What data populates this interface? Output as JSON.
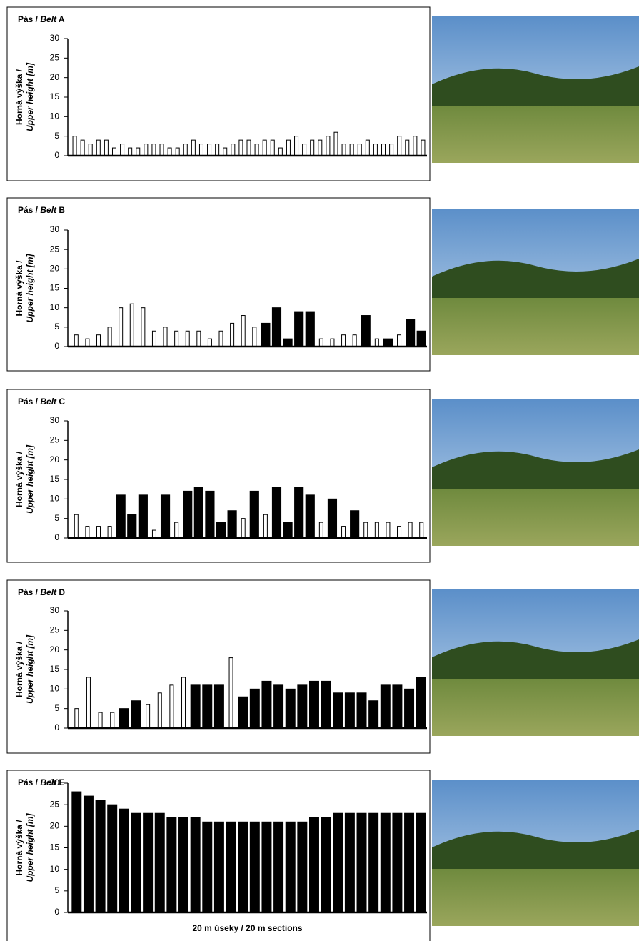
{
  "chart_data": [
    {
      "type": "bar",
      "title_parts": [
        "Pás / ",
        "Belt",
        " A"
      ],
      "ylabel_lines": [
        "Horná výška /",
        "Upper height [m]"
      ],
      "values": [
        5,
        4,
        3,
        4,
        4,
        2,
        3,
        2,
        2,
        3,
        3,
        3,
        2,
        2,
        3,
        4,
        3,
        3,
        3,
        2,
        3,
        4,
        4,
        3,
        4,
        4,
        2,
        4,
        5,
        3,
        4,
        4,
        5,
        6,
        3,
        3,
        3,
        4,
        3,
        3,
        3,
        5,
        4,
        5,
        4
      ],
      "colors": [
        "#ffffff",
        "#ffffff",
        "#ffffff",
        "#ffffff",
        "#ffffff",
        "#ffffff",
        "#ffffff",
        "#ffffff",
        "#ffffff",
        "#ffffff",
        "#ffffff",
        "#ffffff",
        "#ffffff",
        "#ffffff",
        "#ffffff",
        "#ffffff",
        "#ffffff",
        "#ffffff",
        "#ffffff",
        "#ffffff",
        "#ffffff",
        "#ffffff",
        "#ffffff",
        "#ffffff",
        "#ffffff",
        "#ffffff",
        "#ffffff",
        "#ffffff",
        "#ffffff",
        "#ffffff",
        "#ffffff",
        "#ffffff",
        "#ffffff",
        "#ffffff",
        "#ffffff",
        "#ffffff",
        "#ffffff",
        "#ffffff",
        "#ffffff",
        "#ffffff",
        "#ffffff",
        "#ffffff",
        "#ffffff",
        "#ffffff",
        "#ffffff"
      ],
      "ylim": [
        0,
        30
      ],
      "yticks": [
        0,
        5,
        10,
        15,
        20,
        25,
        30
      ]
    },
    {
      "type": "bar",
      "title_parts": [
        "Pás / ",
        "Belt",
        " B"
      ],
      "ylabel_lines": [
        "Horná výška /",
        "Upper height [m]"
      ],
      "values": [
        3,
        2,
        3,
        5,
        10,
        11,
        10,
        4,
        5,
        4,
        4,
        4,
        2,
        4,
        6,
        8,
        5,
        6,
        10,
        2,
        9,
        9,
        2,
        2,
        3,
        3,
        8,
        2,
        2,
        3,
        7,
        4
      ],
      "colors": [
        "#ffffff",
        "#ffffff",
        "#ffffff",
        "#ffffff",
        "#ffffff",
        "#ffffff",
        "#ffffff",
        "#ffffff",
        "#ffffff",
        "#ffffff",
        "#ffffff",
        "#ffffff",
        "#ffffff",
        "#ffffff",
        "#ffffff",
        "#ffffff",
        "#ffffff",
        "#000000",
        "#000000",
        "#000000",
        "#000000",
        "#000000",
        "#ffffff",
        "#ffffff",
        "#ffffff",
        "#ffffff",
        "#000000",
        "#ffffff",
        "#000000",
        "#ffffff",
        "#000000",
        "#000000"
      ],
      "ylim": [
        0,
        30
      ],
      "yticks": [
        0,
        5,
        10,
        15,
        20,
        25,
        30
      ]
    },
    {
      "type": "bar",
      "title_parts": [
        "Pás / ",
        "Belt",
        " C"
      ],
      "ylabel_lines": [
        "Horná výška /",
        "Upper height [m]"
      ],
      "values": [
        6,
        3,
        3,
        3,
        11,
        6,
        11,
        2,
        11,
        4,
        12,
        13,
        12,
        4,
        7,
        5,
        12,
        6,
        13,
        4,
        13,
        11,
        4,
        10,
        3,
        7,
        4,
        4,
        4,
        3,
        4,
        4
      ],
      "colors": [
        "#ffffff",
        "#ffffff",
        "#ffffff",
        "#ffffff",
        "#000000",
        "#000000",
        "#000000",
        "#ffffff",
        "#000000",
        "#ffffff",
        "#000000",
        "#000000",
        "#000000",
        "#000000",
        "#000000",
        "#ffffff",
        "#000000",
        "#ffffff",
        "#000000",
        "#000000",
        "#000000",
        "#000000",
        "#ffffff",
        "#000000",
        "#ffffff",
        "#000000",
        "#ffffff",
        "#ffffff",
        "#ffffff",
        "#ffffff",
        "#ffffff",
        "#ffffff"
      ],
      "ylim": [
        0,
        30
      ],
      "yticks": [
        0,
        5,
        10,
        15,
        20,
        25,
        30
      ]
    },
    {
      "type": "bar",
      "title_parts": [
        "Pás / ",
        "Belt",
        " D"
      ],
      "ylabel_lines": [
        "Horná výška /",
        "Upper height [m]"
      ],
      "values": [
        5,
        13,
        4,
        4,
        5,
        7,
        6,
        9,
        11,
        13,
        11,
        11,
        11,
        18,
        8,
        10,
        12,
        11,
        10,
        11,
        12,
        12,
        9,
        9,
        9,
        7,
        11,
        11,
        10,
        13
      ],
      "colors": [
        "#ffffff",
        "#ffffff",
        "#ffffff",
        "#ffffff",
        "#000000",
        "#000000",
        "#ffffff",
        "#ffffff",
        "#ffffff",
        "#ffffff",
        "#000000",
        "#000000",
        "#000000",
        "#ffffff",
        "#000000",
        "#000000",
        "#000000",
        "#000000",
        "#000000",
        "#000000",
        "#000000",
        "#000000",
        "#000000",
        "#000000",
        "#000000",
        "#000000",
        "#000000",
        "#000000",
        "#000000",
        "#000000"
      ],
      "ylim": [
        0,
        30
      ],
      "yticks": [
        0,
        5,
        10,
        15,
        20,
        25,
        30
      ]
    },
    {
      "type": "bar",
      "title_parts": [
        "Pás / ",
        "Belt",
        " E"
      ],
      "ylabel_lines": [
        "Horná výška /",
        "Upper height [m]"
      ],
      "xlabel": "20 m úseky / 20 m sections",
      "values": [
        28,
        27,
        26,
        25,
        24,
        23,
        23,
        23,
        22,
        22,
        22,
        21,
        21,
        21,
        21,
        21,
        21,
        21,
        21,
        21,
        22,
        22,
        23,
        23,
        23,
        23,
        23,
        23,
        23,
        23
      ],
      "colors": [
        "#000000",
        "#000000",
        "#000000",
        "#000000",
        "#000000",
        "#000000",
        "#000000",
        "#000000",
        "#000000",
        "#000000",
        "#000000",
        "#000000",
        "#000000",
        "#000000",
        "#000000",
        "#000000",
        "#000000",
        "#000000",
        "#000000",
        "#000000",
        "#000000",
        "#000000",
        "#000000",
        "#000000",
        "#000000",
        "#000000",
        "#000000",
        "#000000",
        "#000000",
        "#000000"
      ],
      "ylim": [
        0,
        30
      ],
      "yticks": [
        0,
        5,
        10,
        15,
        20,
        25,
        30
      ]
    }
  ]
}
